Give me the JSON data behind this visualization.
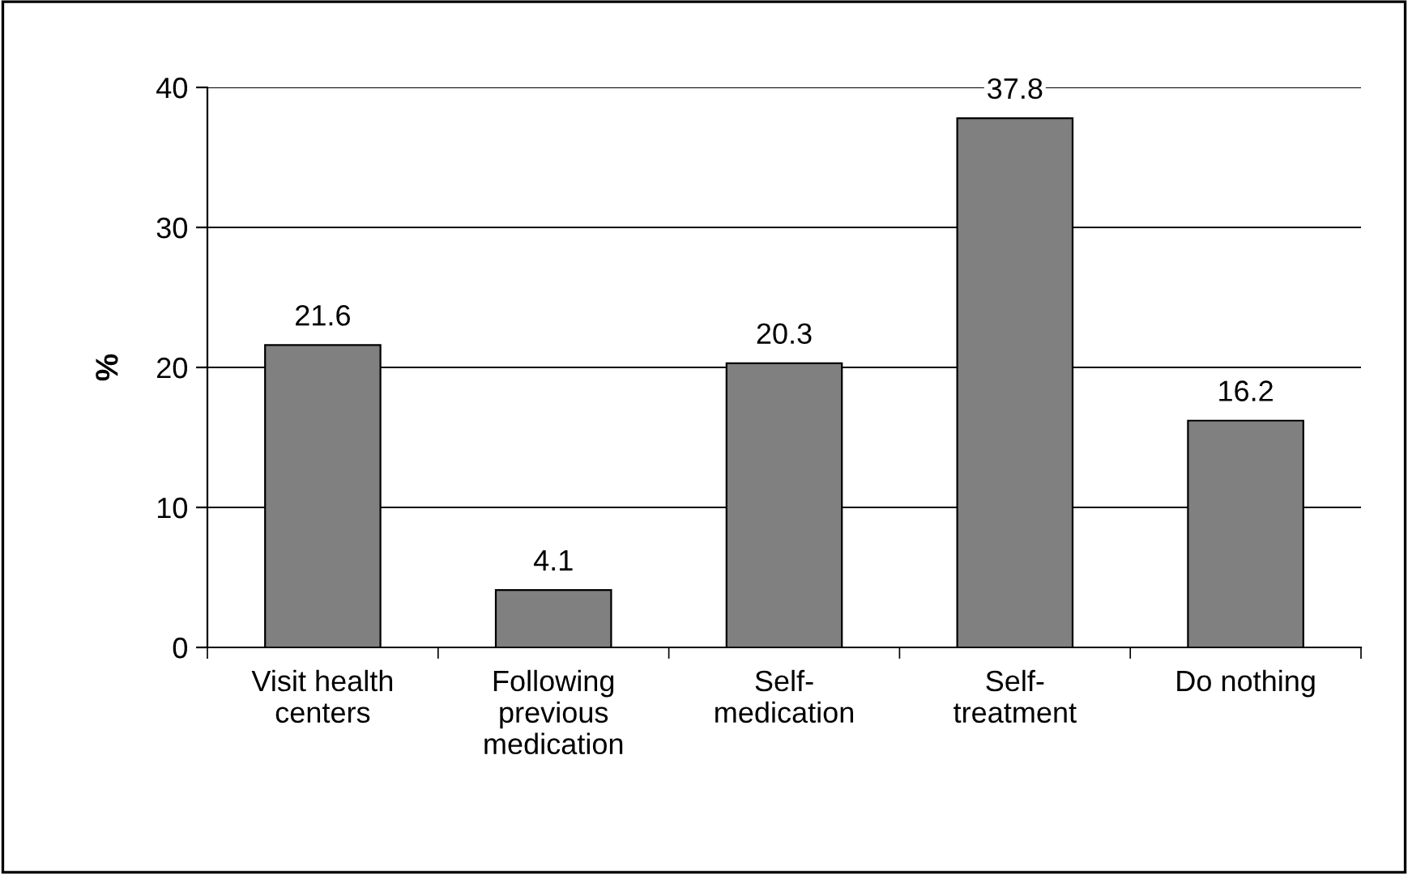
{
  "chart_data": {
    "type": "bar",
    "ylabel": "%",
    "categories": [
      "Visit health\ncenters",
      "Following\nprevious\nmedication",
      "Self-\nmedication",
      "Self-\ntreatment",
      "Do nothing"
    ],
    "values": [
      21.6,
      4.1,
      20.3,
      37.8,
      16.2
    ],
    "color": "#808080",
    "ylim": [
      0,
      40
    ],
    "yticks": [
      0,
      10,
      20,
      30,
      40
    ],
    "grid": "y",
    "data_labels": true
  }
}
